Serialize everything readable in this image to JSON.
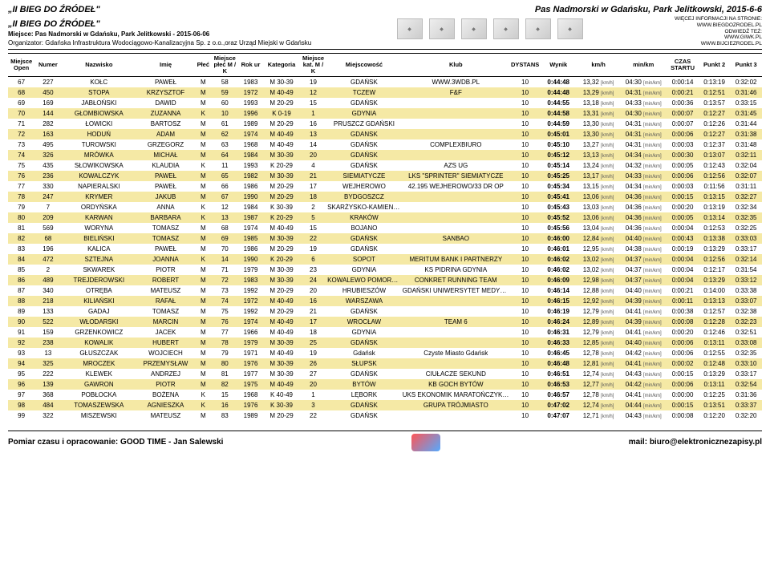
{
  "event": {
    "title_left": "„II BIEG DO ŹRÓDEŁ\"",
    "title_right": "Pas Nadmorski w Gdańsku, Park Jelitkowski, 2015-6-6",
    "subtitle": "„II BIEG DO ŹRÓDEŁ\"",
    "place_line": "Miejsce: Pas Nadmorski w Gdańsku, Park Jelitkowski - 2015-06-06",
    "organizer_line": "Organizator: Gdańska Infrastruktura Wodociągowo-Kanalizacyjna Sp. z o.o.,oraz Urząd Miejski w Gdańsku",
    "side_info": "WIĘCEJ INFORMACJI NA STRONIE:\nWWW.BIEGDOZRODEL.PL\nODWIEDŹ TEŻ:\nWWW.GIWK.PL\nWWW.BIJCIEZRODEL.PL"
  },
  "columns": [
    "Miejsce Open",
    "Numer",
    "Nazwisko",
    "Imię",
    "Płeć",
    "Miejsce płeć M / K",
    "Rok ur",
    "Kategoria",
    "Miejsce kat. M / K",
    "Miejscowość",
    "Klub",
    "DYSTANS",
    "Wynik",
    "km/h",
    "min/km",
    "CZAS STARTU",
    "Punkt 2",
    "Punkt 3"
  ],
  "unit_kmh": "[km/h]",
  "unit_minkm": "[min/km]",
  "rows": [
    [
      "67",
      "227",
      "KOŁC",
      "PAWEŁ",
      "M",
      "58",
      "1983",
      "M 30-39",
      "19",
      "GDAŃSK",
      "WWW.3WDB.PL",
      "10",
      "0:44:48",
      "13,32",
      "04:30",
      "0:00:14",
      "0:13:19",
      "0:32:02"
    ],
    [
      "68",
      "450",
      "STOPA",
      "KRZYSZTOF",
      "M",
      "59",
      "1972",
      "M 40-49",
      "12",
      "TCZEW",
      "F&F",
      "10",
      "0:44:48",
      "13,29",
      "04:31",
      "0:00:21",
      "0:12:51",
      "0:31:46"
    ],
    [
      "69",
      "169",
      "JABŁOŃSKI",
      "DAWID",
      "M",
      "60",
      "1993",
      "M 20-29",
      "15",
      "GDAŃSK",
      "",
      "10",
      "0:44:55",
      "13,18",
      "04:33",
      "0:00:36",
      "0:13:57",
      "0:33:15"
    ],
    [
      "70",
      "144",
      "GŁOMBIOWSKA",
      "ZUZANNA",
      "K",
      "10",
      "1996",
      "K 0-19",
      "1",
      "GDYNIA",
      "",
      "10",
      "0:44:58",
      "13,31",
      "04:30",
      "0:00:07",
      "0:12:27",
      "0:31:45"
    ],
    [
      "71",
      "282",
      "ŁOWICKI",
      "BARTOSZ",
      "M",
      "61",
      "1989",
      "M 20-29",
      "16",
      "PRUSZCZ GDAŃSKI",
      "",
      "10",
      "0:44:59",
      "13,30",
      "04:31",
      "0:00:07",
      "0:12:26",
      "0:31:44"
    ],
    [
      "72",
      "163",
      "HODUŃ",
      "ADAM",
      "M",
      "62",
      "1974",
      "M 40-49",
      "13",
      "GDANSK",
      "",
      "10",
      "0:45:01",
      "13,30",
      "04:31",
      "0:00:06",
      "0:12:27",
      "0:31:38"
    ],
    [
      "73",
      "495",
      "TUROWSKI",
      "GRZEGORZ",
      "M",
      "63",
      "1968",
      "M 40-49",
      "14",
      "GDAŃSK",
      "COMPLEXBIURO",
      "10",
      "0:45:10",
      "13,27",
      "04:31",
      "0:00:03",
      "0:12:37",
      "0:31:48"
    ],
    [
      "74",
      "326",
      "MRÓWKA",
      "MICHAŁ",
      "M",
      "64",
      "1984",
      "M 30-39",
      "20",
      "GDAŃSK",
      "",
      "10",
      "0:45:12",
      "13,13",
      "04:34",
      "0:00:30",
      "0:13:07",
      "0:32:11"
    ],
    [
      "75",
      "435",
      "SŁOWIKOWSKA",
      "KLAUDIA",
      "K",
      "11",
      "1993",
      "K 20-29",
      "4",
      "GDAŃSK",
      "AZS UG",
      "10",
      "0:45:14",
      "13,24",
      "04:32",
      "0:00:05",
      "0:12:43",
      "0:32:04"
    ],
    [
      "76",
      "236",
      "KOWALCZYK",
      "PAWEŁ",
      "M",
      "65",
      "1982",
      "M 30-39",
      "21",
      "SIEMIATYCZE",
      "LKS \"SPRINTER\" SIEMIATYCZE",
      "10",
      "0:45:25",
      "13,17",
      "04:33",
      "0:00:06",
      "0:12:56",
      "0:32:07"
    ],
    [
      "77",
      "330",
      "NAPIERALSKI",
      "PAWEŁ",
      "M",
      "66",
      "1986",
      "M 20-29",
      "17",
      "WEJHEROWO",
      "42.195 WEJHEROWO/33 DR OP",
      "10",
      "0:45:34",
      "13,15",
      "04:34",
      "0:00:03",
      "0:11:56",
      "0:31:11"
    ],
    [
      "78",
      "247",
      "KRYMER",
      "JAKUB",
      "M",
      "67",
      "1990",
      "M 20-29",
      "18",
      "BYDGOSZCZ",
      "",
      "10",
      "0:45:41",
      "13,06",
      "04:36",
      "0:00:15",
      "0:13:15",
      "0:32:27"
    ],
    [
      "79",
      "7",
      "ORDYŃSKA",
      "ANNA",
      "K",
      "12",
      "1984",
      "K 30-39",
      "2",
      "SKARŻYSKO-KAMIENNA",
      "",
      "10",
      "0:45:43",
      "13,03",
      "04:36",
      "0:00:20",
      "0:13:19",
      "0:32:34"
    ],
    [
      "80",
      "209",
      "KARWAN",
      "BARBARA",
      "K",
      "13",
      "1987",
      "K 20-29",
      "5",
      "KRAKÓW",
      "",
      "10",
      "0:45:52",
      "13,06",
      "04:36",
      "0:00:05",
      "0:13:14",
      "0:32:35"
    ],
    [
      "81",
      "569",
      "WORYNA",
      "TOMASZ",
      "M",
      "68",
      "1974",
      "M 40-49",
      "15",
      "BOJANO",
      "",
      "10",
      "0:45:56",
      "13,04",
      "04:36",
      "0:00:04",
      "0:12:53",
      "0:32:25"
    ],
    [
      "82",
      "68",
      "BIELIŃSKI",
      "TOMASZ",
      "M",
      "69",
      "1985",
      "M 30-39",
      "22",
      "GDAŃSK",
      "SANBAO",
      "10",
      "0:46:00",
      "12,84",
      "04:40",
      "0:00:43",
      "0:13:38",
      "0:33:03"
    ],
    [
      "83",
      "196",
      "KALICA",
      "PAWEŁ",
      "M",
      "70",
      "1986",
      "M 20-29",
      "19",
      "GDAŃSK",
      "",
      "10",
      "0:46:01",
      "12,95",
      "04:38",
      "0:00:19",
      "0:13:29",
      "0:33:17"
    ],
    [
      "84",
      "472",
      "SZTEJNA",
      "JOANNA",
      "K",
      "14",
      "1990",
      "K 20-29",
      "6",
      "SOPOT",
      "MERITUM BANK I PARTNERZY",
      "10",
      "0:46:02",
      "13,02",
      "04:37",
      "0:00:04",
      "0:12:56",
      "0:32:14"
    ],
    [
      "85",
      "2",
      "SKWAREK",
      "PIOTR",
      "M",
      "71",
      "1979",
      "M 30-39",
      "23",
      "GDYNIA",
      "KS PIDRINA GDYNIA",
      "10",
      "0:46:02",
      "13,02",
      "04:37",
      "0:00:04",
      "0:12:17",
      "0:31:54"
    ],
    [
      "86",
      "489",
      "TREJDEROWSKI",
      "ROBERT",
      "M",
      "72",
      "1983",
      "M 30-39",
      "24",
      "KOWALEWO POMORSKIE",
      "CONKRET RUNNING TEAM",
      "10",
      "0:46:09",
      "12,98",
      "04:37",
      "0:00:04",
      "0:13:29",
      "0:33:12"
    ],
    [
      "87",
      "340",
      "OTRĘBA",
      "MATEUSZ",
      "M",
      "73",
      "1992",
      "M 20-29",
      "20",
      "HRUBIESZÓW",
      "GDAŃSKI UNIWERSYTET MEDYCZNY",
      "10",
      "0:46:14",
      "12,88",
      "04:40",
      "0:00:21",
      "0:14:00",
      "0:33:38"
    ],
    [
      "88",
      "218",
      "KILIAŃSKI",
      "RAFAŁ",
      "M",
      "74",
      "1972",
      "M 40-49",
      "16",
      "WARSZAWA",
      "",
      "10",
      "0:46:15",
      "12,92",
      "04:39",
      "0:00:11",
      "0:13:13",
      "0:33:07"
    ],
    [
      "89",
      "133",
      "GADAJ",
      "TOMASZ",
      "M",
      "75",
      "1992",
      "M 20-29",
      "21",
      "GDAŃSK",
      "",
      "10",
      "0:46:19",
      "12,79",
      "04:41",
      "0:00:38",
      "0:12:57",
      "0:32:38"
    ],
    [
      "90",
      "522",
      "WŁODARSKI",
      "MARCIN",
      "M",
      "76",
      "1974",
      "M 40-49",
      "17",
      "WROCŁAW",
      "TEAM 6",
      "10",
      "0:46:24",
      "12,89",
      "04:39",
      "0:00:08",
      "0:12:28",
      "0:32:23"
    ],
    [
      "91",
      "159",
      "GRZENKOWICZ",
      "JACEK",
      "M",
      "77",
      "1966",
      "M 40-49",
      "18",
      "GDYNIA",
      "",
      "10",
      "0:46:31",
      "12,79",
      "04:41",
      "0:00:20",
      "0:12:46",
      "0:32:51"
    ],
    [
      "92",
      "238",
      "KOWALIK",
      "HUBERT",
      "M",
      "78",
      "1979",
      "M 30-39",
      "25",
      "GDAŃSK",
      "",
      "10",
      "0:46:33",
      "12,85",
      "04:40",
      "0:00:06",
      "0:13:11",
      "0:33:08"
    ],
    [
      "93",
      "13",
      "GŁUSZCZAK",
      "WOJCIECH",
      "M",
      "79",
      "1971",
      "M 40-49",
      "19",
      "Gdańsk",
      "Czyste Miasto Gdańsk",
      "10",
      "0:46:45",
      "12,78",
      "04:42",
      "0:00:06",
      "0:12:55",
      "0:32:35"
    ],
    [
      "94",
      "325",
      "MROCZEK",
      "PRZEMYSŁAW",
      "M",
      "80",
      "1976",
      "M 30-39",
      "26",
      "SŁUPSK",
      "",
      "10",
      "0:46:48",
      "12,81",
      "04:41",
      "0:00:02",
      "0:12:48",
      "0:33:10"
    ],
    [
      "95",
      "222",
      "KLEWEK",
      "ANDRZEJ",
      "M",
      "81",
      "1977",
      "M 30-39",
      "27",
      "GDAŃSK",
      "CIUŁACZE SEKUND",
      "10",
      "0:46:51",
      "12,74",
      "04:43",
      "0:00:15",
      "0:13:29",
      "0:33:17"
    ],
    [
      "96",
      "139",
      "GAWRON",
      "PIOTR",
      "M",
      "82",
      "1975",
      "M 40-49",
      "20",
      "BYTÓW",
      "KB GOCH BYTÓW",
      "10",
      "0:46:53",
      "12,77",
      "04:42",
      "0:00:06",
      "0:13:11",
      "0:32:54"
    ],
    [
      "97",
      "368",
      "POBŁOCKA",
      "BOŻENA",
      "K",
      "15",
      "1968",
      "K 40-49",
      "1",
      "LĘBORK",
      "UKS EKONOMIK MARATOŃCZYK LĘBORK",
      "10",
      "0:46:57",
      "12,78",
      "04:41",
      "0:00:00",
      "0:12:25",
      "0:31:36"
    ],
    [
      "98",
      "484",
      "TOMASZEWSKA",
      "AGNIESZKA",
      "K",
      "16",
      "1976",
      "K 30-39",
      "3",
      "GDAŃSK",
      "GRUPA TRÓJMIASTO",
      "10",
      "0:47:02",
      "12,74",
      "04:44",
      "0:00:15",
      "0:13:51",
      "0:33:37"
    ],
    [
      "99",
      "322",
      "MISZEWSKI",
      "MATEUSZ",
      "M",
      "83",
      "1989",
      "M 20-29",
      "22",
      "GDAŃSK",
      "",
      "10",
      "0:47:07",
      "12,71",
      "04:43",
      "0:00:08",
      "0:12:20",
      "0:32:20"
    ]
  ],
  "footer": {
    "left": "Pomiar czasu i opracowanie: GOOD TIME - Jan Salewski",
    "right": "mail: biuro@elektronicznezapisy.pl"
  }
}
